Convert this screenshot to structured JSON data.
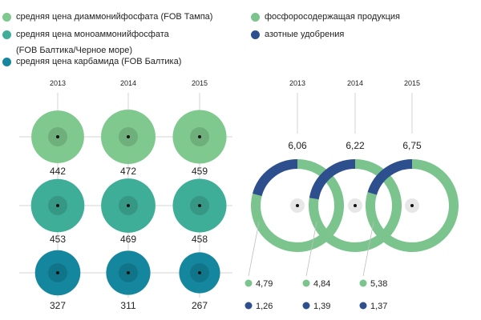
{
  "legend": {
    "left": [
      {
        "label": "средняя цена диаммонийфосфата (FOB Тампа)",
        "sub": "",
        "color": "#7fc98f"
      },
      {
        "label": "средняя цена моноаммонийфосфата",
        "sub": "(FOB Балтика/Черное море)",
        "color": "#3eae99"
      },
      {
        "label": "средняя цена карбамида (FOB Балтика)",
        "sub": "",
        "color": "#14879f"
      }
    ],
    "right": [
      {
        "label": "фосфоросодержащая продукция",
        "sub": "",
        "color": "#7cc48e"
      },
      {
        "label": "азотные удобрения",
        "sub": "",
        "color": "#2d4f8e"
      }
    ]
  },
  "chart_data": [
    {
      "type": "bubble",
      "years": [
        "2013",
        "2014",
        "2015"
      ],
      "series": [
        {
          "name": "средняя цена диаммонийфосфата (FOB Тампа)",
          "values": [
            442,
            472,
            459
          ],
          "color": "#7fc98f"
        },
        {
          "name": "средняя цена моноаммонийфосфата (FOB Балтика/Черное море)",
          "values": [
            453,
            469,
            458
          ],
          "color": "#3eae99"
        },
        {
          "name": "средняя цена карбамида (FOB Балтика)",
          "values": [
            327,
            311,
            267
          ],
          "color": "#14879f"
        }
      ]
    },
    {
      "type": "donut",
      "years": [
        "2013",
        "2014",
        "2015"
      ],
      "totals": [
        "6,06",
        "6,22",
        "6,75"
      ],
      "series": [
        {
          "name": "фосфоросодержащая продукция",
          "values": [
            4.79,
            4.84,
            5.38
          ],
          "labels": [
            "4,79",
            "4,84",
            "5,38"
          ],
          "color": "#7cc48e"
        },
        {
          "name": "азотные удобрения",
          "values": [
            1.26,
            1.39,
            1.37
          ],
          "labels": [
            "1,26",
            "1,39",
            "1,37"
          ],
          "color": "#2d4f8e"
        }
      ]
    }
  ]
}
